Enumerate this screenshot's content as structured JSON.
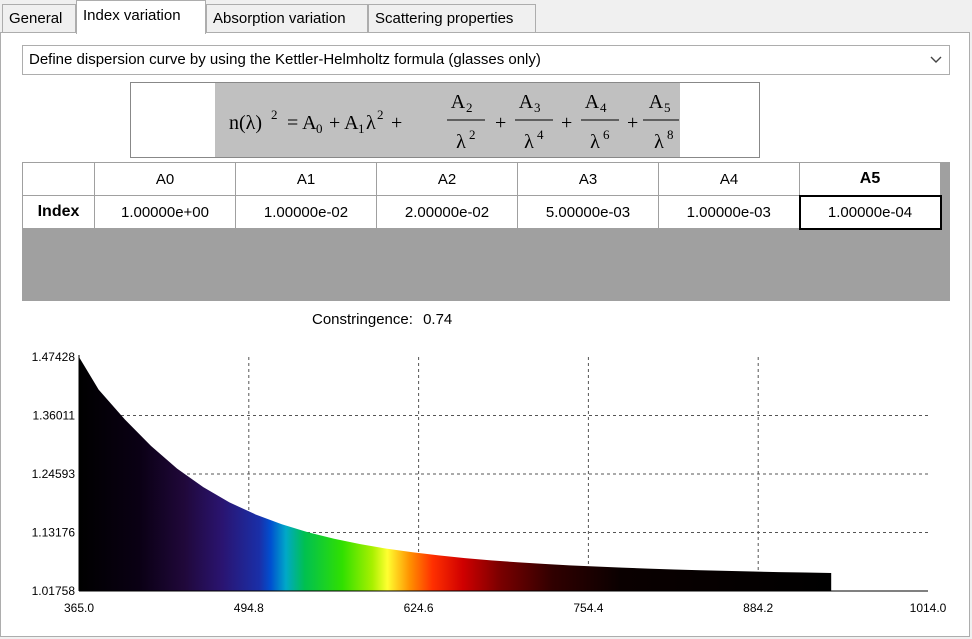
{
  "tabs": [
    {
      "label": "General",
      "active": false
    },
    {
      "label": "Index variation",
      "active": true
    },
    {
      "label": "Absorption variation",
      "active": false
    },
    {
      "label": "Scattering properties",
      "active": false
    }
  ],
  "dispersion_select": {
    "value": "Define dispersion curve by using the Kettler-Helmholtz formula (glasses only)"
  },
  "coefficients": {
    "row_label": "Index",
    "columns": [
      "A0",
      "A1",
      "A2",
      "A3",
      "A4",
      "A5"
    ],
    "values": [
      "1.00000e+00",
      "1.00000e-02",
      "2.00000e-02",
      "5.00000e-03",
      "1.00000e-03",
      "1.00000e-04"
    ],
    "selected_column": "A5"
  },
  "constringence": {
    "label": "Constringence:",
    "value": "0.74"
  },
  "chart_data": {
    "type": "area",
    "title": "",
    "xlabel": "",
    "ylabel": "",
    "x_ticks": [
      "365.0",
      "494.8",
      "624.6",
      "754.4",
      "884.2",
      "1014.0"
    ],
    "y_ticks": [
      "1.47428",
      "1.36011",
      "1.24593",
      "1.13176",
      "1.01758"
    ],
    "xlim": [
      365.0,
      1014.0
    ],
    "ylim": [
      1.01758,
      1.47428
    ],
    "grid": true,
    "fill": "visible-spectrum gradient",
    "x": [
      365,
      380,
      400,
      420,
      440,
      460,
      480,
      500,
      520,
      540,
      560,
      580,
      600,
      620,
      640,
      660,
      680,
      700,
      720,
      740,
      760,
      780,
      800,
      820,
      840,
      860,
      880,
      900,
      920,
      940
    ],
    "y": [
      1.4743,
      1.4107,
      1.3526,
      1.3007,
      1.2565,
      1.2203,
      1.1905,
      1.167,
      1.1478,
      1.1322,
      1.1195,
      1.109,
      1.1003,
      1.0931,
      1.087,
      1.0818,
      1.0774,
      1.0737,
      1.0705,
      1.0677,
      1.0653,
      1.0631,
      1.0613,
      1.0596,
      1.0581,
      1.0568,
      1.0556,
      1.0545,
      1.0536,
      1.0527
    ]
  }
}
